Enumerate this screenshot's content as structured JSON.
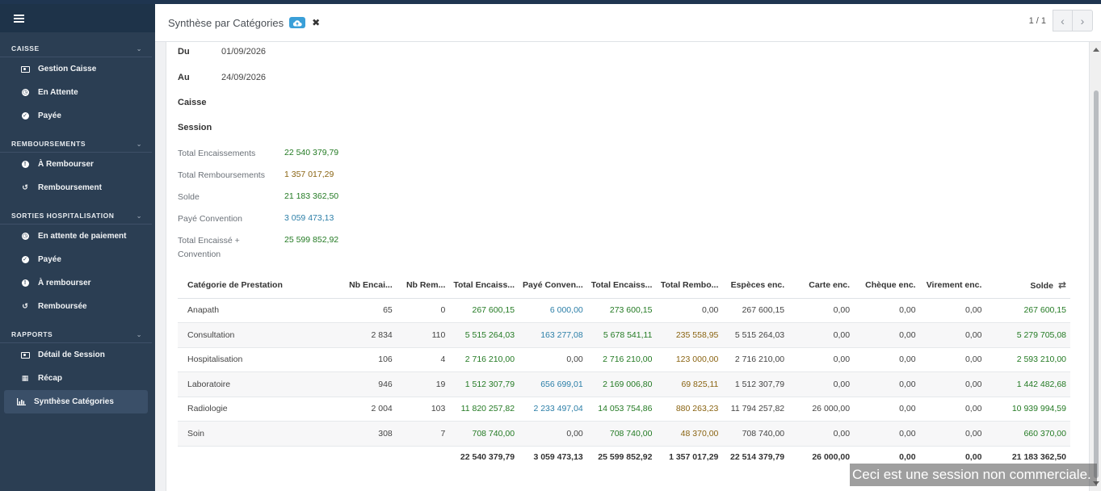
{
  "sidebar": {
    "sections": [
      {
        "title": "CAISSE",
        "items": [
          {
            "label": "Gestion Caisse",
            "icon": "money-icon"
          },
          {
            "label": "En Attente",
            "icon": "clock-icon"
          },
          {
            "label": "Payée",
            "icon": "check-circle-icon"
          }
        ]
      },
      {
        "title": "REMBOURSEMENTS",
        "items": [
          {
            "label": "À Rembourser",
            "icon": "exclamation-circle-icon"
          },
          {
            "label": "Remboursement",
            "icon": "undo-icon"
          }
        ]
      },
      {
        "title": "SORTIES HOSPITALISATION",
        "items": [
          {
            "label": "En attente de paiement",
            "icon": "clock-icon"
          },
          {
            "label": "Payée",
            "icon": "check-circle-icon"
          },
          {
            "label": "À rembourser",
            "icon": "exclamation-circle-icon"
          },
          {
            "label": "Remboursée",
            "icon": "undo-icon"
          }
        ]
      },
      {
        "title": "RAPPORTS",
        "items": [
          {
            "label": "Détail de Session",
            "icon": "money-icon"
          },
          {
            "label": "Récap",
            "icon": "table-icon"
          },
          {
            "label": "Synthèse Catégories",
            "icon": "bar-chart-icon",
            "active": true
          }
        ]
      }
    ]
  },
  "header": {
    "title": "Synthèse par Catégories",
    "pager": "1 / 1"
  },
  "filters": {
    "du_label": "Du",
    "du_value": "01/09/2026",
    "au_label": "Au",
    "au_value": "24/09/2026",
    "caisse_label": "Caisse",
    "session_label": "Session"
  },
  "summary": {
    "total_enc_label": "Total Encaissements",
    "total_enc_value": "22 540 379,79",
    "total_remb_label": "Total Remboursements",
    "total_remb_value": "1 357 017,29",
    "solde_label": "Solde",
    "solde_value": "21 183 362,50",
    "paye_conv_label": "Payé Convention",
    "paye_conv_value": "3 059 473,13",
    "total_enc_conv_label_1": "Total Encaissé +",
    "total_enc_conv_label_2": "Convention",
    "total_enc_conv_value": "25 599 852,92"
  },
  "table": {
    "headers": [
      "Catégorie de Prestation",
      "Nb Encai...",
      "Nb Rem...",
      "Total Encaiss...",
      "Payé Conven...",
      "Total Encaiss...",
      "Total Rembo...",
      "Espèces enc.",
      "Carte enc.",
      "Chèque enc.",
      "Virement enc.",
      "Solde"
    ],
    "rows": [
      [
        "Anapath",
        "65",
        "0",
        "267 600,15",
        "6 000,00",
        "273 600,15",
        "0,00",
        "267 600,15",
        "0,00",
        "0,00",
        "0,00",
        "267 600,15"
      ],
      [
        "Consultation",
        "2 834",
        "110",
        "5 515 264,03",
        "163 277,08",
        "5 678 541,11",
        "235 558,95",
        "5 515 264,03",
        "0,00",
        "0,00",
        "0,00",
        "5 279 705,08"
      ],
      [
        "Hospitalisation",
        "106",
        "4",
        "2 716 210,00",
        "0,00",
        "2 716 210,00",
        "123 000,00",
        "2 716 210,00",
        "0,00",
        "0,00",
        "0,00",
        "2 593 210,00"
      ],
      [
        "Laboratoire",
        "946",
        "19",
        "1 512 307,79",
        "656 699,01",
        "2 169 006,80",
        "69 825,11",
        "1 512 307,79",
        "0,00",
        "0,00",
        "0,00",
        "1 442 482,68"
      ],
      [
        "Radiologie",
        "2 004",
        "103",
        "11 820 257,82",
        "2 233 497,04",
        "14 053 754,86",
        "880 263,23",
        "11 794 257,82",
        "26 000,00",
        "0,00",
        "0,00",
        "10 939 994,59"
      ],
      [
        "Soin",
        "308",
        "7",
        "708 740,00",
        "0,00",
        "708 740,00",
        "48 370,00",
        "708 740,00",
        "0,00",
        "0,00",
        "0,00",
        "660 370,00"
      ]
    ],
    "totals": [
      "",
      "",
      "",
      "22 540 379,79",
      "3 059 473,13",
      "25 599 852,92",
      "1 357 017,29",
      "22 514 379,79",
      "26 000,00",
      "0,00",
      "0,00",
      "21 183 362,50"
    ]
  },
  "watermark": "Ceci est une session non commerciale.",
  "colors": {
    "green": "#237a23",
    "amber": "#8a6412",
    "blue": "#2c7fa8",
    "sidebar": "#2b3e53"
  }
}
